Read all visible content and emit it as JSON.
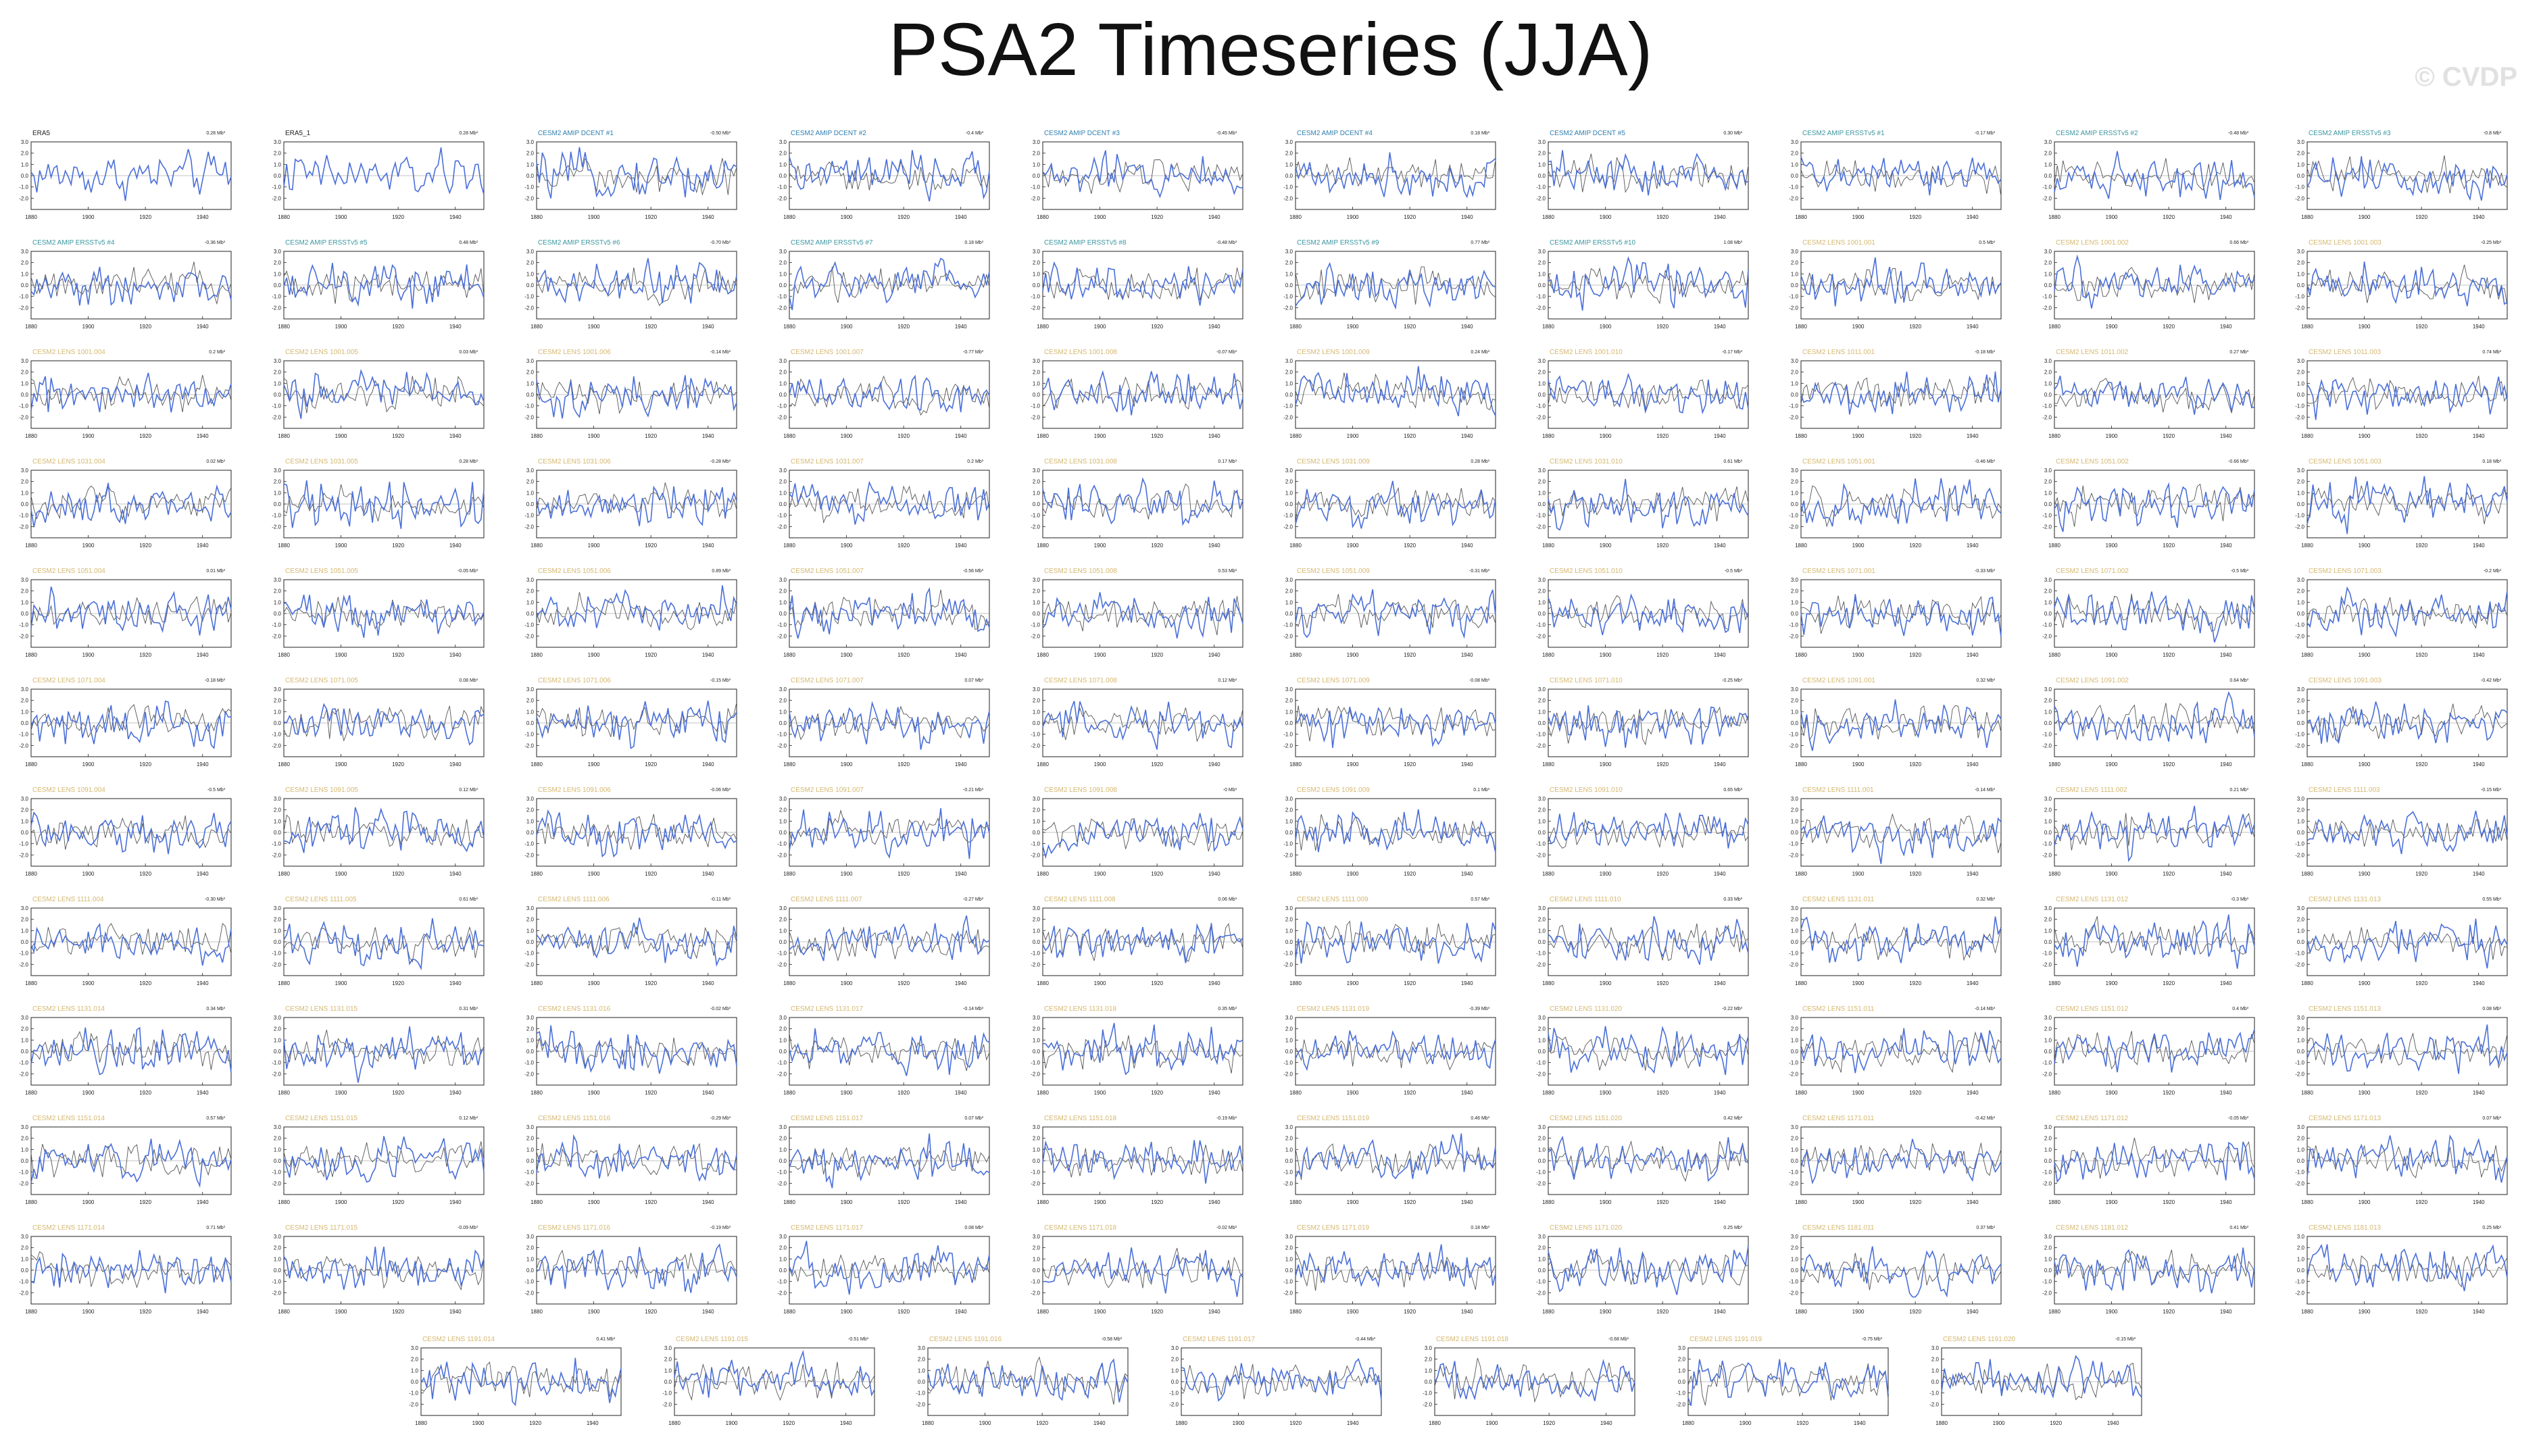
{
  "title": "PSA2 Timeseries (JJA)",
  "watermark": "© CVDP",
  "colors": {
    "obs_series": "#4a6fd8",
    "ens_series": "#555555",
    "label_obs": "#222222",
    "label_amip_dcent": "#2f7fb0",
    "label_amip_ersst": "#3b96a0",
    "label_lens": "#d6b870"
  },
  "chart_data": {
    "type": "line",
    "xlim": [
      1880,
      1950
    ],
    "x_ticks": [
      "1880",
      "1900",
      "1920",
      "1940"
    ],
    "y_ticks": [
      "3.0",
      "2.0",
      "1.0",
      "0.0",
      "-1.0",
      "-2.0"
    ],
    "ylim": [
      -3,
      3
    ],
    "panels": [
      {
        "label": "ERA5",
        "trend": "0.28 Mb³",
        "group": "obs"
      },
      {
        "label": "ERA5_1",
        "trend": "0.28 Mb³",
        "group": "obs"
      },
      {
        "label": "CESM2 AMIP DCENT #1",
        "trend": "-0.50 Mb³",
        "group": "dcent"
      },
      {
        "label": "CESM2 AMIP DCENT #2",
        "trend": "-0.4 Mb³",
        "group": "dcent"
      },
      {
        "label": "CESM2 AMIP DCENT #3",
        "trend": "-0.45 Mb³",
        "group": "dcent"
      },
      {
        "label": "CESM2 AMIP DCENT #4",
        "trend": "0.18 Mb³",
        "group": "dcent"
      },
      {
        "label": "CESM2 AMIP DCENT #5",
        "trend": "0.30 Mb³",
        "group": "dcent"
      },
      {
        "label": "CESM2 AMIP ERSSTv5 #1",
        "trend": "-0.17 Mb³",
        "group": "ersst"
      },
      {
        "label": "CESM2 AMIP ERSSTv5 #2",
        "trend": "-0.48 Mb³",
        "group": "ersst"
      },
      {
        "label": "CESM2 AMIP ERSSTv5 #3",
        "trend": "-0.8 Mb³",
        "group": "ersst"
      },
      {
        "label": "CESM2 AMIP ERSSTv5 #4",
        "trend": "-0.36 Mb³",
        "group": "ersst"
      },
      {
        "label": "CESM2 AMIP ERSSTv5 #5",
        "trend": "0.48 Mb³",
        "group": "ersst"
      },
      {
        "label": "CESM2 AMIP ERSSTv5 #6",
        "trend": "-0.70 Mb³",
        "group": "ersst"
      },
      {
        "label": "CESM2 AMIP ERSSTv5 #7",
        "trend": "0.18 Mb³",
        "group": "ersst"
      },
      {
        "label": "CESM2 AMIP ERSSTv5 #8",
        "trend": "-0.48 Mb³",
        "group": "ersst"
      },
      {
        "label": "CESM2 AMIP ERSSTv5 #9",
        "trend": "0.77 Mb³",
        "group": "ersst"
      },
      {
        "label": "CESM2 AMIP ERSSTv5 #10",
        "trend": "1.08 Mb³",
        "group": "ersst"
      },
      {
        "label": "CESM2 LENS 1001.001",
        "trend": "0.5 Mb³",
        "group": "lens"
      },
      {
        "label": "CESM2 LENS 1001.002",
        "trend": "0.66 Mb³",
        "group": "lens"
      },
      {
        "label": "CESM2 LENS 1001.003",
        "trend": "-0.25 Mb³",
        "group": "lens"
      },
      {
        "label": "CESM2 LENS 1001.004",
        "trend": "0.2 Mb³",
        "group": "lens"
      },
      {
        "label": "CESM2 LENS 1001.005",
        "trend": "0.03 Mb³",
        "group": "lens"
      },
      {
        "label": "CESM2 LENS 1001.006",
        "trend": "-0.14 Mb³",
        "group": "lens"
      },
      {
        "label": "CESM2 LENS 1001.007",
        "trend": "-0.77 Mb³",
        "group": "lens"
      },
      {
        "label": "CESM2 LENS 1001.008",
        "trend": "-0.07 Mb³",
        "group": "lens"
      },
      {
        "label": "CESM2 LENS 1001.009",
        "trend": "0.24 Mb³",
        "group": "lens"
      },
      {
        "label": "CESM2 LENS 1001.010",
        "trend": "-0.17 Mb³",
        "group": "lens"
      },
      {
        "label": "CESM2 LENS 1011.001",
        "trend": "-0.18 Mb³",
        "group": "lens"
      },
      {
        "label": "CESM2 LENS 1011.002",
        "trend": "0.27 Mb³",
        "group": "lens"
      },
      {
        "label": "CESM2 LENS 1011.003",
        "trend": "0.74 Mb³",
        "group": "lens"
      },
      {
        "label": "CESM2 LENS 1031.004",
        "trend": "0.02 Mb³",
        "group": "lens"
      },
      {
        "label": "CESM2 LENS 1031.005",
        "trend": "0.28 Mb³",
        "group": "lens"
      },
      {
        "label": "CESM2 LENS 1031.006",
        "trend": "-0.28 Mb³",
        "group": "lens"
      },
      {
        "label": "CESM2 LENS 1031.007",
        "trend": "0.2 Mb³",
        "group": "lens"
      },
      {
        "label": "CESM2 LENS 1031.008",
        "trend": "0.17 Mb³",
        "group": "lens"
      },
      {
        "label": "CESM2 LENS 1031.009",
        "trend": "0.28 Mb³",
        "group": "lens"
      },
      {
        "label": "CESM2 LENS 1031.010",
        "trend": "0.61 Mb³",
        "group": "lens"
      },
      {
        "label": "CESM2 LENS 1051.001",
        "trend": "-0.46 Mb³",
        "group": "lens"
      },
      {
        "label": "CESM2 LENS 1051.002",
        "trend": "-0.66 Mb³",
        "group": "lens"
      },
      {
        "label": "CESM2 LENS 1051.003",
        "trend": "0.18 Mb³",
        "group": "lens"
      },
      {
        "label": "CESM2 LENS 1051.004",
        "trend": "0.01 Mb³",
        "group": "lens"
      },
      {
        "label": "CESM2 LENS 1051.005",
        "trend": "-0.05 Mb³",
        "group": "lens"
      },
      {
        "label": "CESM2 LENS 1051.006",
        "trend": "0.89 Mb³",
        "group": "lens"
      },
      {
        "label": "CESM2 LENS 1051.007",
        "trend": "-0.56 Mb³",
        "group": "lens"
      },
      {
        "label": "CESM2 LENS 1051.008",
        "trend": "0.53 Mb³",
        "group": "lens"
      },
      {
        "label": "CESM2 LENS 1051.009",
        "trend": "-0.31 Mb³",
        "group": "lens"
      },
      {
        "label": "CESM2 LENS 1051.010",
        "trend": "-0.5 Mb³",
        "group": "lens"
      },
      {
        "label": "CESM2 LENS 1071.001",
        "trend": "-0.33 Mb³",
        "group": "lens"
      },
      {
        "label": "CESM2 LENS 1071.002",
        "trend": "-0.5 Mb³",
        "group": "lens"
      },
      {
        "label": "CESM2 LENS 1071.003",
        "trend": "-0.2 Mb³",
        "group": "lens"
      },
      {
        "label": "CESM2 LENS 1071.004",
        "trend": "-0.18 Mb³",
        "group": "lens"
      },
      {
        "label": "CESM2 LENS 1071.005",
        "trend": "0.08 Mb³",
        "group": "lens"
      },
      {
        "label": "CESM2 LENS 1071.006",
        "trend": "-0.15 Mb³",
        "group": "lens"
      },
      {
        "label": "CESM2 LENS 1071.007",
        "trend": "0.07 Mb³",
        "group": "lens"
      },
      {
        "label": "CESM2 LENS 1071.008",
        "trend": "0.12 Mb³",
        "group": "lens"
      },
      {
        "label": "CESM2 LENS 1071.009",
        "trend": "-0.08 Mb³",
        "group": "lens"
      },
      {
        "label": "CESM2 LENS 1071.010",
        "trend": "-0.25 Mb³",
        "group": "lens"
      },
      {
        "label": "CESM2 LENS 1091.001",
        "trend": "0.32 Mb³",
        "group": "lens"
      },
      {
        "label": "CESM2 LENS 1091.002",
        "trend": "0.64 Mb³",
        "group": "lens"
      },
      {
        "label": "CESM2 LENS 1091.003",
        "trend": "-0.42 Mb³",
        "group": "lens"
      },
      {
        "label": "CESM2 LENS 1091.004",
        "trend": "-0.5 Mb³",
        "group": "lens"
      },
      {
        "label": "CESM2 LENS 1091.005",
        "trend": "0.12 Mb³",
        "group": "lens"
      },
      {
        "label": "CESM2 LENS 1091.006",
        "trend": "-0.06 Mb³",
        "group": "lens"
      },
      {
        "label": "CESM2 LENS 1091.007",
        "trend": "-0.21 Mb³",
        "group": "lens"
      },
      {
        "label": "CESM2 LENS 1091.008",
        "trend": "-0 Mb³",
        "group": "lens"
      },
      {
        "label": "CESM2 LENS 1091.009",
        "trend": "0.1 Mb³",
        "group": "lens"
      },
      {
        "label": "CESM2 LENS 1091.010",
        "trend": "0.65 Mb³",
        "group": "lens"
      },
      {
        "label": "CESM2 LENS 1111.001",
        "trend": "-0.14 Mb³",
        "group": "lens"
      },
      {
        "label": "CESM2 LENS 1111.002",
        "trend": "0.21 Mb³",
        "group": "lens"
      },
      {
        "label": "CESM2 LENS 1111.003",
        "trend": "-0.15 Mb³",
        "group": "lens"
      },
      {
        "label": "CESM2 LENS 1111.004",
        "trend": "-0.30 Mb³",
        "group": "lens"
      },
      {
        "label": "CESM2 LENS 1111.005",
        "trend": "0.61 Mb³",
        "group": "lens"
      },
      {
        "label": "CESM2 LENS 1111.006",
        "trend": "-0.11 Mb³",
        "group": "lens"
      },
      {
        "label": "CESM2 LENS 1111.007",
        "trend": "-0.27 Mb³",
        "group": "lens"
      },
      {
        "label": "CESM2 LENS 1111.008",
        "trend": "0.06 Mb³",
        "group": "lens"
      },
      {
        "label": "CESM2 LENS 1111.009",
        "trend": "0.57 Mb³",
        "group": "lens"
      },
      {
        "label": "CESM2 LENS 1111.010",
        "trend": "0.33 Mb³",
        "group": "lens"
      },
      {
        "label": "CESM2 LENS 1131.011",
        "trend": "0.32 Mb³",
        "group": "lens"
      },
      {
        "label": "CESM2 LENS 1131.012",
        "trend": "-0.3 Mb³",
        "group": "lens"
      },
      {
        "label": "CESM2 LENS 1131.013",
        "trend": "0.55 Mb³",
        "group": "lens"
      },
      {
        "label": "CESM2 LENS 1131.014",
        "trend": "0.34 Mb³",
        "group": "lens"
      },
      {
        "label": "CESM2 LENS 1131.015",
        "trend": "0.31 Mb³",
        "group": "lens"
      },
      {
        "label": "CESM2 LENS 1131.016",
        "trend": "-0.02 Mb³",
        "group": "lens"
      },
      {
        "label": "CESM2 LENS 1131.017",
        "trend": "-0.14 Mb³",
        "group": "lens"
      },
      {
        "label": "CESM2 LENS 1131.018",
        "trend": "0.35 Mb³",
        "group": "lens"
      },
      {
        "label": "CESM2 LENS 1131.019",
        "trend": "-0.39 Mb³",
        "group": "lens"
      },
      {
        "label": "CESM2 LENS 1131.020",
        "trend": "-0.22 Mb³",
        "group": "lens"
      },
      {
        "label": "CESM2 LENS 1151.011",
        "trend": "-0.14 Mb³",
        "group": "lens"
      },
      {
        "label": "CESM2 LENS 1151.012",
        "trend": "0.4 Mb³",
        "group": "lens"
      },
      {
        "label": "CESM2 LENS 1151.013",
        "trend": "0.08 Mb³",
        "group": "lens"
      },
      {
        "label": "CESM2 LENS 1151.014",
        "trend": "0.57 Mb³",
        "group": "lens"
      },
      {
        "label": "CESM2 LENS 1151.015",
        "trend": "0.12 Mb³",
        "group": "lens"
      },
      {
        "label": "CESM2 LENS 1151.016",
        "trend": "-0.29 Mb³",
        "group": "lens"
      },
      {
        "label": "CESM2 LENS 1151.017",
        "trend": "0.07 Mb³",
        "group": "lens"
      },
      {
        "label": "CESM2 LENS 1151.018",
        "trend": "-0.19 Mb³",
        "group": "lens"
      },
      {
        "label": "CESM2 LENS 1151.019",
        "trend": "0.46 Mb³",
        "group": "lens"
      },
      {
        "label": "CESM2 LENS 1151.020",
        "trend": "0.42 Mb³",
        "group": "lens"
      },
      {
        "label": "CESM2 LENS 1171.011",
        "trend": "-0.42 Mb³",
        "group": "lens"
      },
      {
        "label": "CESM2 LENS 1171.012",
        "trend": "-0.05 Mb³",
        "group": "lens"
      },
      {
        "label": "CESM2 LENS 1171.013",
        "trend": "0.07 Mb³",
        "group": "lens"
      },
      {
        "label": "CESM2 LENS 1171.014",
        "trend": "0.71 Mb³",
        "group": "lens"
      },
      {
        "label": "CESM2 LENS 1171.015",
        "trend": "-0.09 Mb³",
        "group": "lens"
      },
      {
        "label": "CESM2 LENS 1171.016",
        "trend": "-0.19 Mb³",
        "group": "lens"
      },
      {
        "label": "CESM2 LENS 1171.017",
        "trend": "0.08 Mb³",
        "group": "lens"
      },
      {
        "label": "CESM2 LENS 1171.018",
        "trend": "-0.02 Mb³",
        "group": "lens"
      },
      {
        "label": "CESM2 LENS 1171.019",
        "trend": "0.18 Mb³",
        "group": "lens"
      },
      {
        "label": "CESM2 LENS 1171.020",
        "trend": "0.25 Mb³",
        "group": "lens"
      },
      {
        "label": "CESM2 LENS 1181.011",
        "trend": "0.37 Mb³",
        "group": "lens"
      },
      {
        "label": "CESM2 LENS 1181.012",
        "trend": "0.41 Mb³",
        "group": "lens"
      },
      {
        "label": "CESM2 LENS 1181.013",
        "trend": "0.25 Mb³",
        "group": "lens"
      },
      {
        "label": "CESM2 LENS 1191.014",
        "trend": "0.41 Mb³",
        "group": "lens"
      },
      {
        "label": "CESM2 LENS 1191.015",
        "trend": "-0.51 Mb³",
        "group": "lens"
      },
      {
        "label": "CESM2 LENS 1191.016",
        "trend": "-0.58 Mb³",
        "group": "lens"
      },
      {
        "label": "CESM2 LENS 1191.017",
        "trend": "-0.44 Mb³",
        "group": "lens"
      },
      {
        "label": "CESM2 LENS 1191.018",
        "trend": "-0.68 Mb³",
        "group": "lens"
      },
      {
        "label": "CESM2 LENS 1191.019",
        "trend": "-0.75 Mb³",
        "group": "lens"
      },
      {
        "label": "CESM2 LENS 1191.020",
        "trend": "-0.15 Mb³",
        "group": "lens"
      }
    ]
  }
}
